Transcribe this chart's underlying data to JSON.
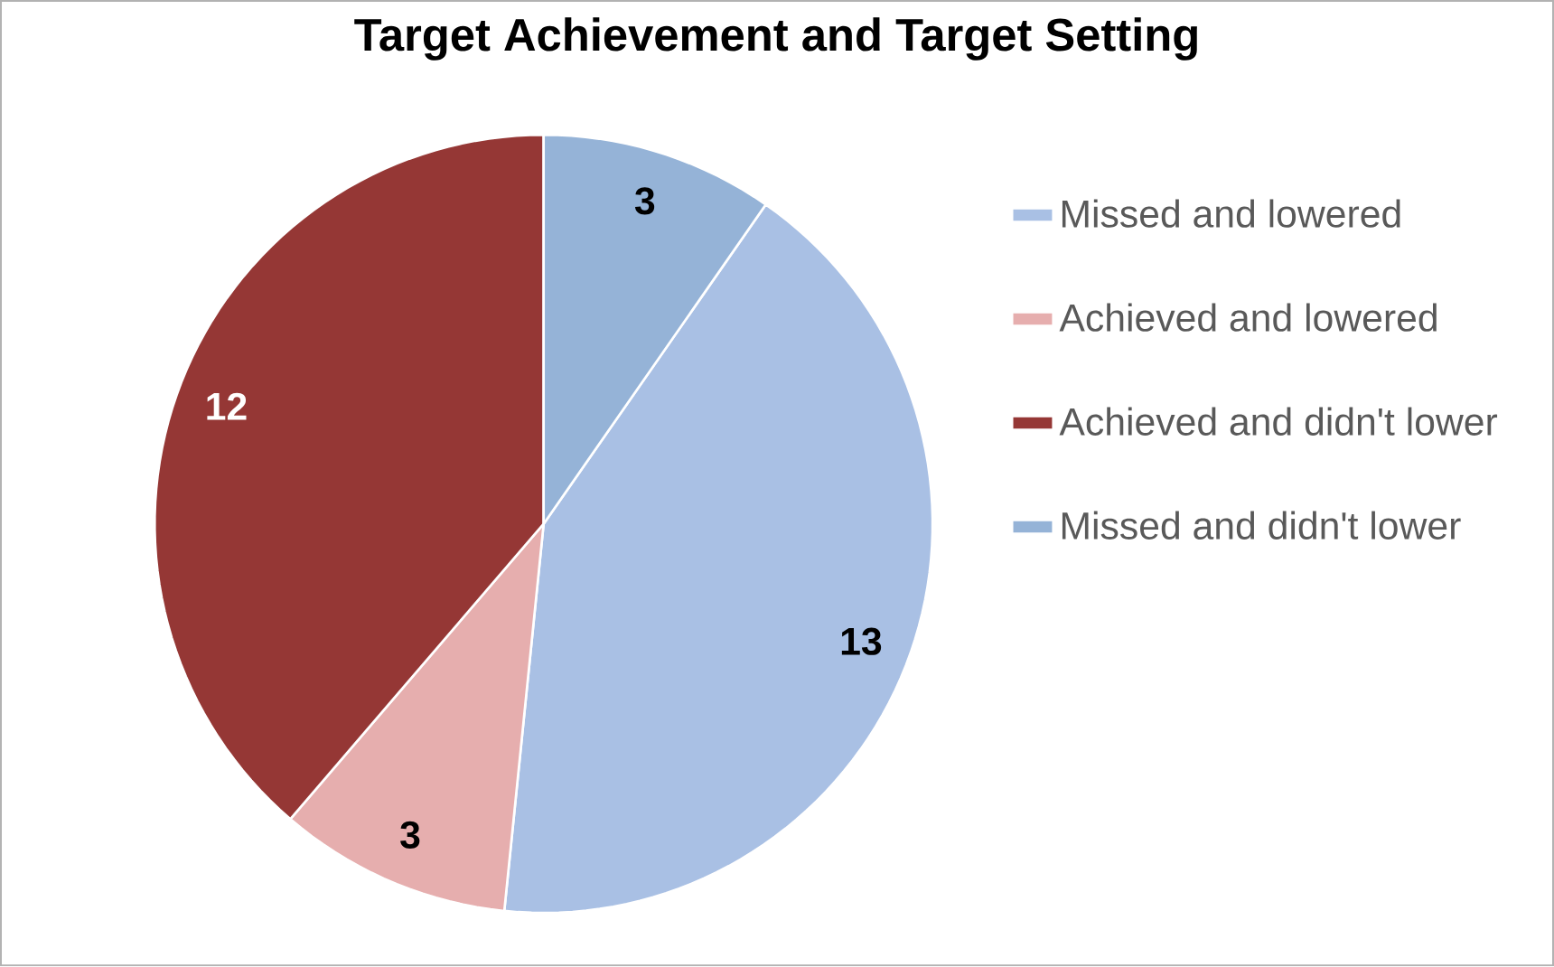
{
  "chart_data": {
    "type": "pie",
    "title": "Target Achievement and Target Setting",
    "categories": [
      "Missed and lowered",
      "Achieved and lowered",
      "Achieved and didn't lower",
      "Missed and didn't lower"
    ],
    "values": [
      13,
      3,
      12,
      3
    ],
    "colors": [
      "#a9c0e4",
      "#e6aeae",
      "#953735",
      "#95b3d7"
    ],
    "data_labels": true,
    "legend": "right"
  }
}
